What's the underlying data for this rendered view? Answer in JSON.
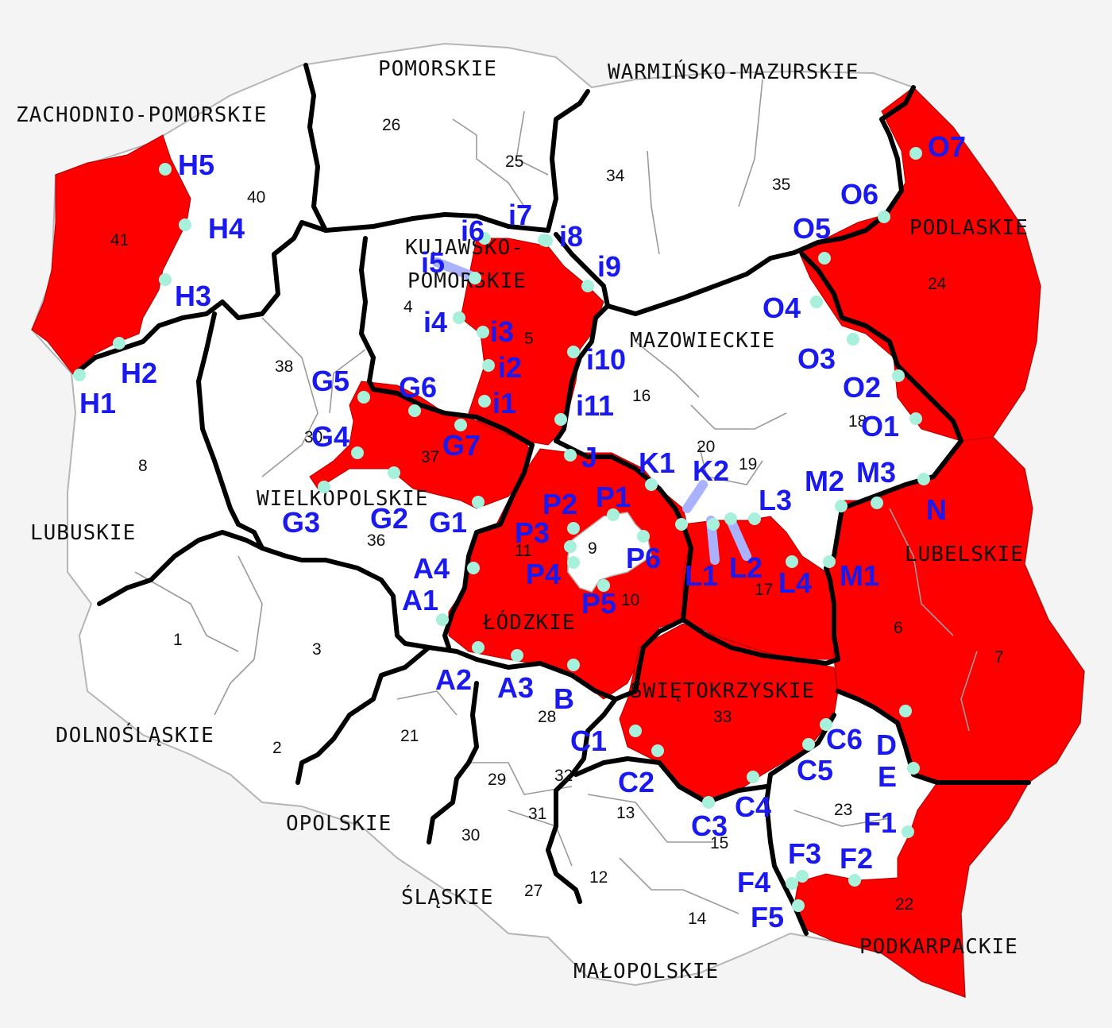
{
  "voivodeships": [
    {
      "id": "zachodniopomorskie",
      "label": "ZACHODNIO-POMORSKIE"
    },
    {
      "id": "pomorskie",
      "label": "POMORSKIE"
    },
    {
      "id": "warminsko",
      "label": "WARMIŃSKO-MAZURSKIE"
    },
    {
      "id": "podlaskie",
      "label": "PODLASKIE"
    },
    {
      "id": "kujawsko1",
      "label": "KUJAWSKO-"
    },
    {
      "id": "kujawsko2",
      "label": "POMORSKIE"
    },
    {
      "id": "mazowieckie",
      "label": "MAZOWIECKIE"
    },
    {
      "id": "wielkopolskie",
      "label": "WIELKOPOLSKIE"
    },
    {
      "id": "lubuskie",
      "label": "LUBUSKIE"
    },
    {
      "id": "lubelskie",
      "label": "LUBELSKIE"
    },
    {
      "id": "lodzkie",
      "label": "ŁÓDZKIE"
    },
    {
      "id": "swietokrzyskie",
      "label": "ŚWIĘTOKRZYSKIE"
    },
    {
      "id": "dolnoslaskie",
      "label": "DOLNOŚLĄSKIE"
    },
    {
      "id": "opolskie",
      "label": "OPOLSKIE"
    },
    {
      "id": "slaskie",
      "label": "ŚLĄSKIE"
    },
    {
      "id": "malopolskie",
      "label": "MAŁOPOLSKIE"
    },
    {
      "id": "podkarpackie",
      "label": "PODKARPACKIE"
    }
  ],
  "district_numbers": [
    "1",
    "2",
    "3",
    "4",
    "5",
    "6",
    "7",
    "8",
    "9",
    "10",
    "11",
    "12",
    "13",
    "14",
    "15",
    "16",
    "17",
    "18",
    "19",
    "20",
    "21",
    "22",
    "23",
    "24",
    "25",
    "26",
    "27",
    "28",
    "29",
    "30",
    "30",
    "31",
    "32",
    "33",
    "34",
    "35",
    "36",
    "37",
    "38",
    "40",
    "41"
  ],
  "points": [
    "H5",
    "H4",
    "H3",
    "H2",
    "H1",
    "i7",
    "i6",
    "i8",
    "i5",
    "i9",
    "i4",
    "i3",
    "i2",
    "i10",
    "i1",
    "i11",
    "G5",
    "G6",
    "G4",
    "G7",
    "G3",
    "G2",
    "G1",
    "J",
    "K1",
    "K2",
    "P1",
    "P2",
    "P3",
    "P6",
    "P4",
    "P5",
    "L1",
    "L2",
    "L3",
    "L4",
    "M1",
    "M2",
    "M3",
    "N",
    "O7",
    "O6",
    "O5",
    "O4",
    "O3",
    "O2",
    "O1",
    "A4",
    "A1",
    "A2",
    "A3",
    "B",
    "C1",
    "C2",
    "C3",
    "C4",
    "C5",
    "C6",
    "D",
    "E",
    "F1",
    "F2",
    "F3",
    "F4",
    "F5"
  ],
  "colors": {
    "highlight": "#fe0000",
    "point_marker": "#a6f0dc",
    "point_label": "#1a1aee",
    "link": "#aab2ff",
    "border": "#000000",
    "background": "#f4f4f4"
  }
}
